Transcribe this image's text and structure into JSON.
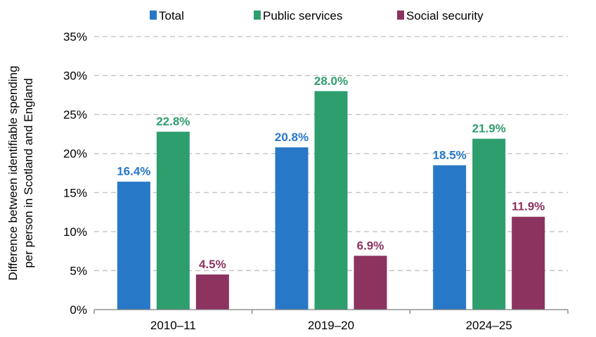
{
  "chart_data": {
    "type": "bar",
    "categories": [
      "2010–11",
      "2019–20",
      "2024–25"
    ],
    "series": [
      {
        "name": "Total",
        "color": "#2878C8",
        "values": [
          16.4,
          20.8,
          18.5
        ],
        "labels": [
          "16.4%",
          "20.8%",
          "18.5%"
        ]
      },
      {
        "name": "Public services",
        "color": "#2E9E6E",
        "values": [
          22.8,
          28.0,
          21.9
        ],
        "labels": [
          "22.8%",
          "28.0%",
          "21.9%"
        ]
      },
      {
        "name": "Social security",
        "color": "#8C3360",
        "values": [
          4.5,
          6.9,
          11.9
        ],
        "labels": [
          "4.5%",
          "6.9%",
          "11.9%"
        ]
      }
    ],
    "ylabel_lines": [
      "Difference between identifiable spending",
      "per person in Scotland and England"
    ],
    "ylim": [
      0,
      35
    ],
    "yticks": [
      {
        "value": 0,
        "label": "0%"
      },
      {
        "value": 5,
        "label": "5%"
      },
      {
        "value": 10,
        "label": "10%"
      },
      {
        "value": 15,
        "label": "15%"
      },
      {
        "value": 20,
        "label": "20%"
      },
      {
        "value": 25,
        "label": "25%"
      },
      {
        "value": 30,
        "label": "30%"
      },
      {
        "value": 35,
        "label": "35%"
      }
    ],
    "grid": true,
    "legend_position": "top"
  }
}
